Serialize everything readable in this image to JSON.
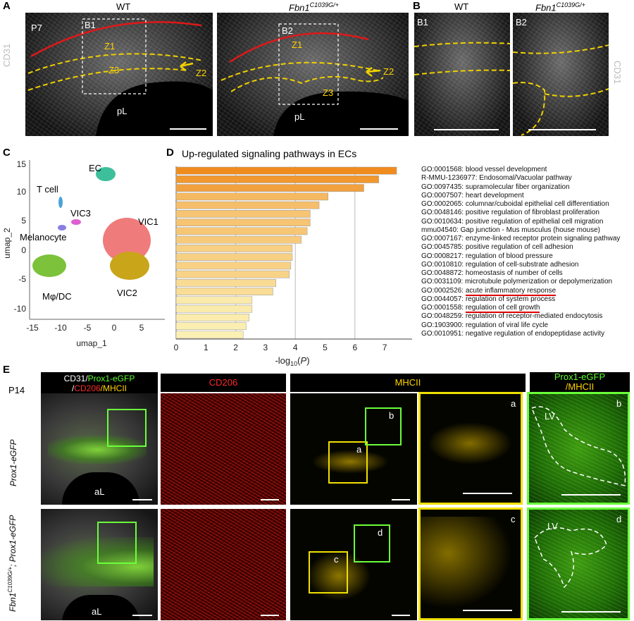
{
  "panels": {
    "A": {
      "letter": "A",
      "titles": {
        "wt": "WT",
        "mut": "Fbn1",
        "mut_sup": "C1039G/+"
      },
      "side_label": "CD31",
      "left": {
        "age": "P7",
        "box": "B1",
        "z1": "Z1",
        "z2": "Z2",
        "z3": "Z3",
        "region": "pL"
      },
      "right": {
        "box": "B2",
        "z1": "Z1",
        "z2": "Z2",
        "z3": "Z3",
        "region": "pL"
      }
    },
    "B": {
      "letter": "B",
      "titles": {
        "wt": "WT",
        "mut": "Fbn1",
        "mut_sup": "C1039G/+"
      },
      "side_label": "CD31",
      "left_label": "B1",
      "right_label": "B2"
    },
    "C": {
      "letter": "C",
      "xlabel": "umap_1",
      "ylabel": "umap_2",
      "xticks": [
        "-15",
        "-10",
        "-5",
        "0",
        "5"
      ],
      "yticks": [
        "15",
        "10",
        "5",
        "0",
        "-5",
        "-10"
      ],
      "clusters": [
        {
          "name": "EC",
          "color": "#3dbf9c"
        },
        {
          "name": "T cell",
          "color": "#4aa3d8"
        },
        {
          "name": "VIC3",
          "color": "#e05fd0"
        },
        {
          "name": "Melanocyte",
          "color": "#8a7de0"
        },
        {
          "name": "VIC1",
          "color": "#f07b7b"
        },
        {
          "name": "VIC2",
          "color": "#c9a51a"
        },
        {
          "name": "Mφ/DC",
          "color": "#7cc23a"
        }
      ]
    },
    "D": {
      "letter": "D",
      "title": "Up-regulated signaling pathways in ECs"
    },
    "E": {
      "letter": "E",
      "age": "P14",
      "header_merge": {
        "cd31": "CD31/",
        "prox": "Prox1-eGFP",
        "slash": "/",
        "cd206": "CD206",
        "mhc": "/MHCII"
      },
      "header_cd206": "CD206",
      "header_mhcii": "MHCII",
      "header_prox": "Prox1-eGFP",
      "header_prox2": "/MHCII",
      "row1_label": "Prox1-eGFP",
      "row2_label_a": "Fbn1",
      "row2_label_sup": "C1039G/+",
      "row2_label_b": "; Prox1-eGFP",
      "region": "aL",
      "insets": {
        "a": "a",
        "b": "b",
        "c": "c",
        "d": "d"
      },
      "lv": "LV"
    }
  },
  "chart_data": {
    "type": "bar",
    "orientation": "horizontal",
    "xlabel": "-log10(P)",
    "xlim": [
      0,
      8
    ],
    "xticks": [
      0,
      1,
      2,
      3,
      4,
      5,
      6,
      7
    ],
    "grid": true,
    "categories": [
      "GO:0001568: blood vessel development",
      "R-MMU-1236977: Endosomal/Vacuolar pathway",
      "GO:0097435: supramolecular fiber organization",
      "GO:0007507: heart development",
      "GO:0002065: columnar/cuboidal epithelial cell differentiation",
      "GO:0048146: positive regulation of fibroblast proliferation",
      "GO:0010634: positive regulation of epithelial cell migration",
      "mmu04540: Gap junction - Mus musculus (house mouse)",
      "GO:0007167: enzyme-linked receptor protein signaling pathway",
      "GO:0045785: positive regulation of cell adhesion",
      "GO:0008217: regulation of blood pressure",
      "GO:0010810: regulation of cell-substrate adhesion",
      "GO:0048872: homeostasis of number of cells",
      "GO:0031109: microtubule polymerization or depolymerization",
      "GO:0002526: acute inflammatory response",
      "GO:0044057: regulation of system process",
      "GO:0001558: regulation of cell growth",
      "GO:0048259: regulation of receptor-mediated endocytosis",
      "GO:1903900: regulation of viral life cycle",
      "GO:0010951: negative regulation of endopeptidase activity"
    ],
    "values": [
      7.4,
      6.8,
      6.3,
      5.1,
      4.8,
      4.5,
      4.5,
      4.4,
      4.2,
      3.9,
      3.9,
      3.85,
      3.8,
      3.35,
      3.25,
      2.55,
      2.55,
      2.45,
      2.35,
      2.25
    ],
    "underlined": [
      14,
      16
    ],
    "underline_color": "#e00000",
    "color_high": "#f08c1e",
    "color_low": "#fbf0b4"
  }
}
